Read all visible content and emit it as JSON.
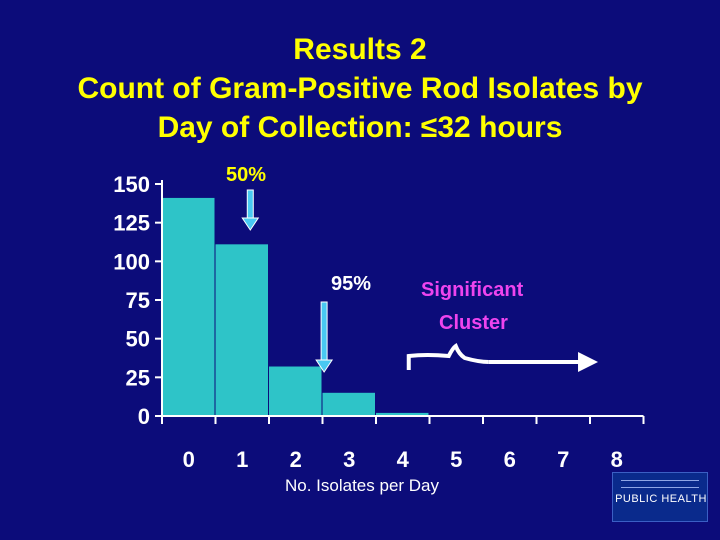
{
  "title": {
    "line1": "Results 2",
    "line2": "Count of Gram-Positive Rod Isolates by",
    "line3": "Day of Collection: ≤32 hours"
  },
  "colors": {
    "background": "#0c0c7a",
    "title": "#ffff00",
    "bars": "#2ec4c8",
    "axis": "#ffffff",
    "arrows": "#49c9f2",
    "annotation_50": "#ffff00",
    "annotation_95": "#ffffff",
    "annotation_cluster": "#ee44ee"
  },
  "chart_data": {
    "type": "bar",
    "categories": [
      "0",
      "1",
      "2",
      "3",
      "4",
      "5",
      "6",
      "7",
      "8"
    ],
    "values": [
      141,
      111,
      32,
      15,
      2,
      0,
      0,
      0,
      0
    ],
    "xlabel": "No. Isolates per Day",
    "ylabel": "",
    "yticks": [
      0,
      25,
      50,
      75,
      100,
      125,
      150
    ],
    "ylim": [
      0,
      150
    ],
    "grid": false,
    "annotations": [
      {
        "text": "50%",
        "x": 1,
        "arrow": "down"
      },
      {
        "text": "95%",
        "x": 3,
        "arrow": "down"
      },
      {
        "text": "Significant",
        "x": 5
      },
      {
        "text": "Cluster",
        "x": 5
      }
    ],
    "bracket_arrow": {
      "from": 4,
      "to": 8
    }
  },
  "logo": {
    "text": "PUBLIC HEALTH",
    "icon": "public-health-logo"
  }
}
